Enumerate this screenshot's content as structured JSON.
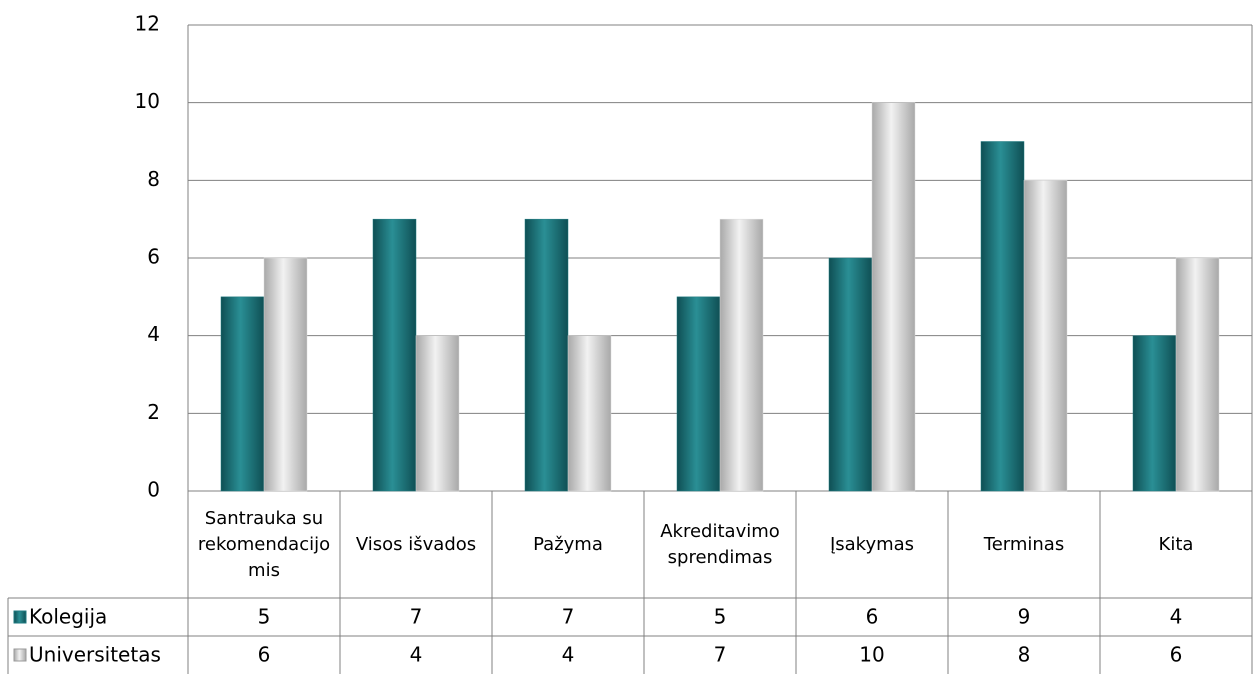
{
  "chart_data": {
    "type": "bar",
    "categories": [
      "Santrauka su rekomendacijomis",
      "Visos išvados",
      "Pažyma",
      "Akreditavimo sprendimas",
      "Įsakymas",
      "Terminas",
      "Kita"
    ],
    "series": [
      {
        "name": "Kolegija",
        "color": "#1f7a80",
        "values": [
          5,
          7,
          7,
          5,
          6,
          9,
          4
        ]
      },
      {
        "name": "Universitetas",
        "color": "#d9d9d9",
        "values": [
          6,
          4,
          4,
          7,
          10,
          8,
          6
        ]
      }
    ],
    "ylim": [
      0,
      12
    ],
    "yticks": [
      0,
      2,
      4,
      6,
      8,
      10,
      12
    ],
    "grid": true,
    "legend": "table"
  }
}
